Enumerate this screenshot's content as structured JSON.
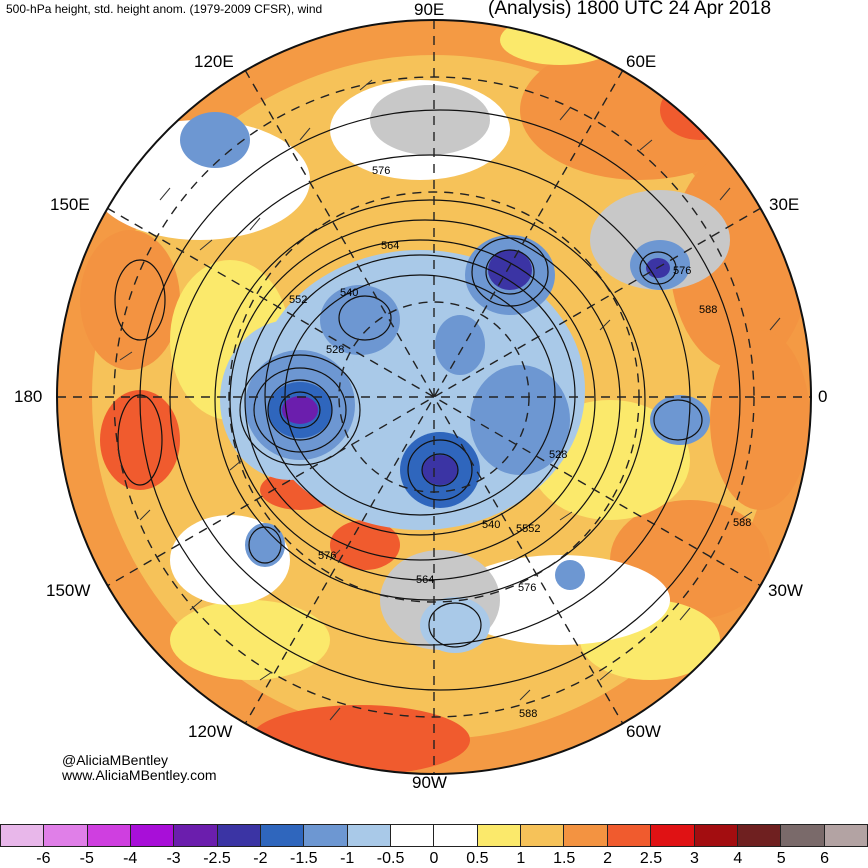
{
  "header": {
    "left_title": "500-hPa height, std. height anom. (1979-2009 CFSR), wind",
    "right_title": "(Analysis) 1800 UTC 24 Apr 2018"
  },
  "longitude_labels": {
    "lon_90e": "90E",
    "lon_120e": "120E",
    "lon_60e": "60E",
    "lon_150e": "150E",
    "lon_30e": "30E",
    "lon_180": "180",
    "lon_0": "0",
    "lon_150w": "150W",
    "lon_30w": "30W",
    "lon_120w": "120W",
    "lon_60w": "60W",
    "lon_90w": "90W"
  },
  "contour_labels": {
    "c576_top": "576",
    "c564_top": "564",
    "c552_left": "552",
    "c540_left": "540",
    "c528_left": "528",
    "c576_right": "576",
    "c588_right": "588",
    "c528_right": "528",
    "c540_bottom": "540",
    "c552_bottom": "5552",
    "c576_bottom": "576",
    "c576_lower_left": "576",
    "c564_bottom": "564",
    "c588_lower_right": "588",
    "c588_bottom": "588"
  },
  "credits": {
    "handle": "@AliciaMBentley",
    "website": "www.AliciaMBentley.com"
  },
  "colorbar": {
    "colors": [
      "#e8b7ea",
      "#e07fe8",
      "#cf3fe0",
      "#a80fd8",
      "#6b1ead",
      "#3b34a4",
      "#2f66bd",
      "#6d97d2",
      "#a9c9e8",
      "#ffffff",
      "#ffffff",
      "#fbe96b",
      "#f6c259",
      "#f39341",
      "#f05b2e",
      "#e01214",
      "#a30d10",
      "#6f2020",
      "#7a6a6a",
      "#b3a3a3"
    ],
    "tick_labels": [
      "-6",
      "-5",
      "-4",
      "-3",
      "-2.5",
      "-2",
      "-1.5",
      "-1",
      "-0.5",
      "0",
      "0.5",
      "1",
      "1.5",
      "2",
      "2.5",
      "3",
      "4",
      "5",
      "6"
    ]
  },
  "palette": {
    "warm_light": "#fbe96b",
    "warm_mid": "#f6c259",
    "warm_strong": "#f39341",
    "warm_deep": "#f05b2e",
    "cool_light": "#a9c9e8",
    "cool_mid": "#6d97d2",
    "cool_strong": "#2f66bd",
    "cool_deep": "#3b34a4",
    "cool_core": "#6b1ead",
    "gray": "#c8c8c8",
    "contour": "#111111"
  }
}
